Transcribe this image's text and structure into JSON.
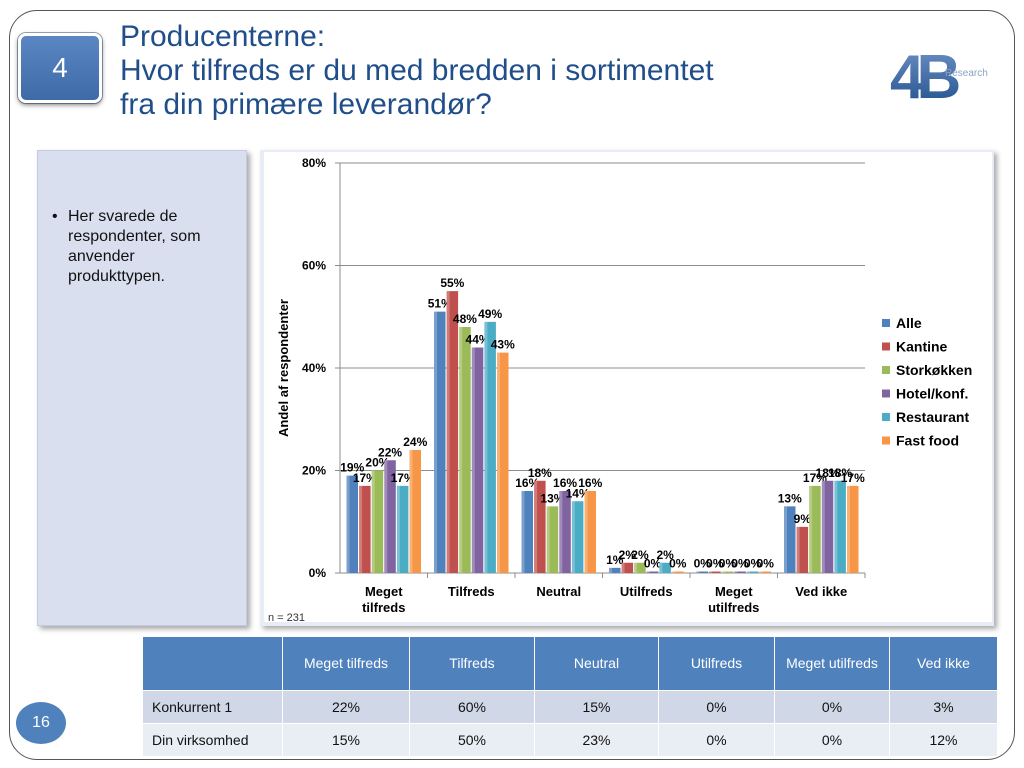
{
  "section_number": "4",
  "page_number": "16",
  "title_lines": [
    "Producenterne:",
    "Hvor tilfreds er du med bredden i sortimentet",
    "fra din primære leverandør?"
  ],
  "logo": {
    "mark": "4B",
    "text": "Research"
  },
  "side_note": {
    "bullet": "•",
    "text": "Her svarede de respondenter, som anvender produkttypen."
  },
  "chart_data": {
    "type": "bar",
    "ylabel": "Andel af respondenter",
    "ylim": [
      0,
      80
    ],
    "yticks": [
      "0%",
      "20%",
      "40%",
      "60%",
      "80%"
    ],
    "categories": [
      [
        "Meget",
        "tilfreds"
      ],
      [
        "Tilfreds"
      ],
      [
        "Neutral"
      ],
      [
        "Utilfreds"
      ],
      [
        "Meget",
        "utilfreds"
      ],
      [
        "Ved ikke"
      ]
    ],
    "series": [
      {
        "name": "Alle",
        "color": "#4f81bd",
        "values": [
          19,
          51,
          16,
          1,
          0,
          13
        ]
      },
      {
        "name": "Kantine",
        "color": "#c0504d",
        "values": [
          17,
          55,
          18,
          2,
          0,
          9
        ]
      },
      {
        "name": "Storkøkken",
        "color": "#9bbb59",
        "values": [
          20,
          48,
          13,
          2,
          0,
          17
        ]
      },
      {
        "name": "Hotel/konf.",
        "color": "#8064a2",
        "values": [
          22,
          44,
          16,
          0,
          0,
          18
        ]
      },
      {
        "name": "Restaurant",
        "color": "#4bacc6",
        "values": [
          17,
          49,
          14,
          2,
          0,
          18
        ]
      },
      {
        "name": "Fast food",
        "color": "#f79646",
        "values": [
          24,
          43,
          16,
          0,
          0,
          17
        ]
      }
    ],
    "note": "n = 231",
    "legend": "right",
    "grid": true
  },
  "table": {
    "headers": [
      "",
      "Meget tilfreds",
      "Tilfreds",
      "Neutral",
      "Utilfreds",
      "Meget utilfreds",
      "Ved ikke"
    ],
    "rows": [
      {
        "label": "Konkurrent 1",
        "values": [
          "22%",
          "60%",
          "15%",
          "0%",
          "0%",
          "3%"
        ]
      },
      {
        "label": "Din virksomhed",
        "values": [
          "15%",
          "50%",
          "23%",
          "0%",
          "0%",
          "12%"
        ]
      }
    ]
  }
}
